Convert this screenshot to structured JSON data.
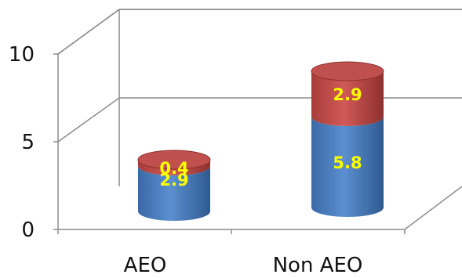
{
  "chart_data": {
    "type": "bar",
    "stacked": true,
    "three_d": true,
    "bar_shape": "cylinder",
    "categories": [
      "AEO",
      "Non AEO"
    ],
    "series": [
      {
        "values": [
          2.9,
          5.8
        ],
        "color": "#4f81bd",
        "label_color": "#ffff00"
      },
      {
        "values": [
          0.4,
          2.9
        ],
        "color": "#c0504d",
        "label_color": "#ffff00"
      }
    ],
    "data_labels": [
      [
        "2.9",
        "5.8"
      ],
      [
        "0.4",
        "2.9"
      ]
    ],
    "yticks": [
      "0",
      "5",
      "10"
    ],
    "ylim": [
      0,
      10
    ],
    "grid": true,
    "legend": "none",
    "title": "",
    "xlabel": "",
    "ylabel": ""
  }
}
